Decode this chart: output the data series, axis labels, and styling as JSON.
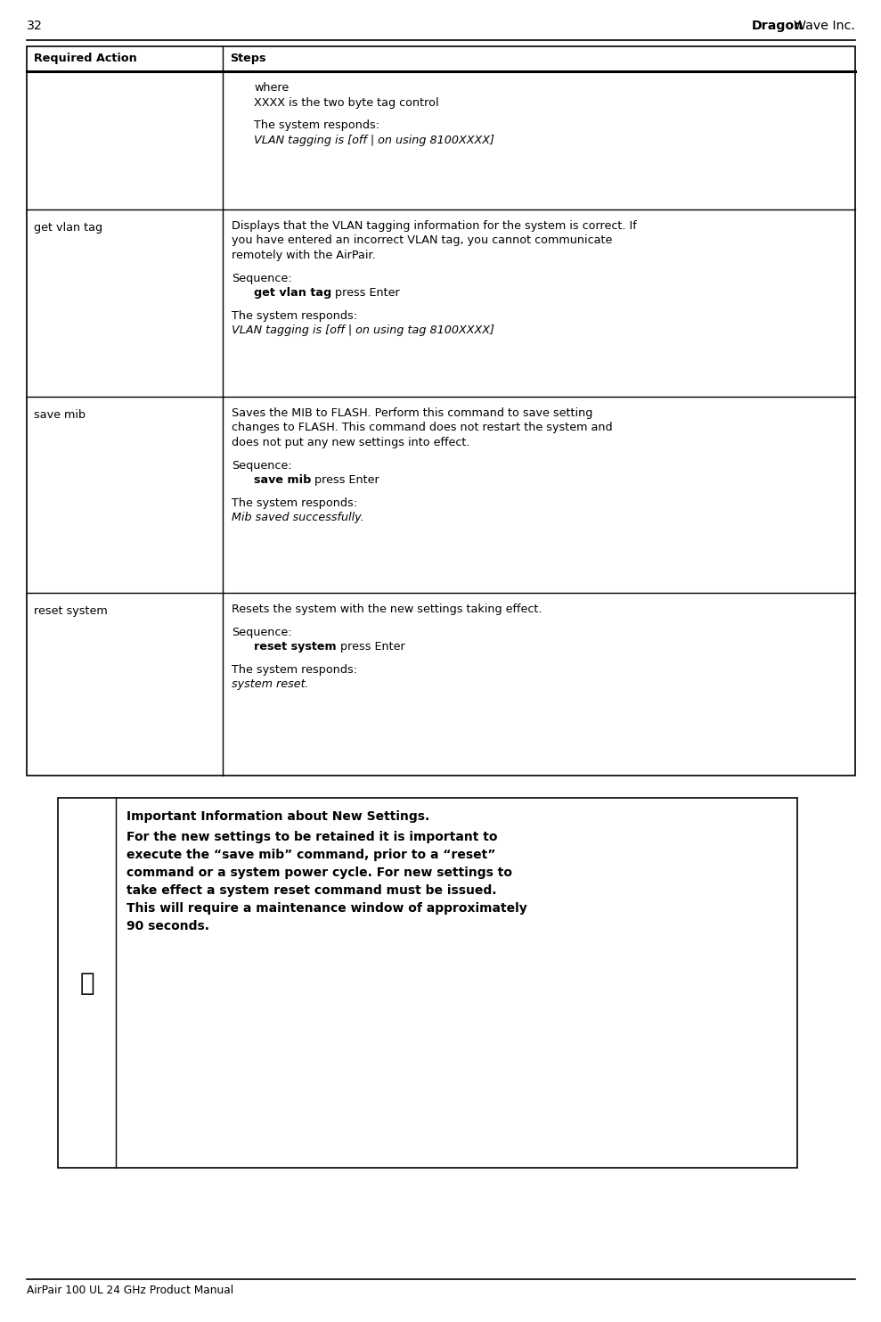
{
  "page_number": "32",
  "company_bold": "Dragon",
  "company_normal": "Wave Inc.",
  "footer_text": "AirPair 100 UL 24 GHz Product Manual",
  "header_col1": "Required Action",
  "header_col2": "Steps",
  "table_rows": [
    {
      "action": "",
      "steps_lines": [
        {
          "text": "where",
          "style": "normal",
          "indent": 1
        },
        {
          "text": "XXXX is the two byte tag control",
          "style": "normal",
          "indent": 1
        },
        {
          "text": "",
          "style": "blank"
        },
        {
          "text": "The system responds:",
          "style": "normal",
          "indent": 1
        },
        {
          "text": "VLAN tagging is [off | on using 8100XXXX]",
          "style": "italic",
          "indent": 1
        }
      ]
    },
    {
      "action": "get vlan tag",
      "steps_lines": [
        {
          "text": "Displays that the VLAN tagging information for the system is correct. If",
          "style": "normal",
          "indent": 0
        },
        {
          "text": "you have entered an incorrect VLAN tag, you cannot communicate",
          "style": "normal",
          "indent": 0
        },
        {
          "text": "remotely with the AirPair.",
          "style": "normal",
          "indent": 0
        },
        {
          "text": "",
          "style": "blank"
        },
        {
          "text": "Sequence:",
          "style": "normal",
          "indent": 0
        },
        {
          "text": "get vlan tag",
          "style": "bold_then_normal",
          "suffix": " press Enter",
          "indent": 1
        },
        {
          "text": "",
          "style": "blank"
        },
        {
          "text": "The system responds:",
          "style": "normal",
          "indent": 0
        },
        {
          "text": "VLAN tagging is [off | on using tag 8100XXXX]",
          "style": "italic",
          "indent": 0
        }
      ]
    },
    {
      "action": "save mib",
      "steps_lines": [
        {
          "text": "Saves the MIB to FLASH. Perform this command to save setting",
          "style": "normal",
          "indent": 0
        },
        {
          "text": "changes to FLASH. This command does not restart the system and",
          "style": "normal",
          "indent": 0
        },
        {
          "text": "does not put any new settings into effect.",
          "style": "normal",
          "indent": 0
        },
        {
          "text": "",
          "style": "blank"
        },
        {
          "text": "Sequence:",
          "style": "normal",
          "indent": 0
        },
        {
          "text": "save mib",
          "style": "bold_then_normal",
          "suffix": " press Enter",
          "indent": 1
        },
        {
          "text": "",
          "style": "blank"
        },
        {
          "text": "The system responds:",
          "style": "normal",
          "indent": 0
        },
        {
          "text": "Mib saved successfully.",
          "style": "italic",
          "indent": 0
        }
      ]
    },
    {
      "action": "reset system",
      "steps_lines": [
        {
          "text": "Resets the system with the new settings taking effect.",
          "style": "normal",
          "indent": 0
        },
        {
          "text": "",
          "style": "blank"
        },
        {
          "text": "Sequence:",
          "style": "normal",
          "indent": 0
        },
        {
          "text": "reset system",
          "style": "bold_then_normal",
          "suffix": " press Enter",
          "indent": 1
        },
        {
          "text": "",
          "style": "blank"
        },
        {
          "text": "The system responds:",
          "style": "normal",
          "indent": 0
        },
        {
          "text": "system reset.",
          "style": "italic",
          "indent": 0
        }
      ]
    }
  ],
  "note_icon": "ⓘ",
  "note_title": "Important Information about New Settings.",
  "note_body_lines": [
    "For the new settings to be retained it is important to",
    "execute the “save mib” command, prior to a “reset”",
    "command or a system power cycle. For new settings to",
    "take effect a system reset command must be issued.",
    "This will require a maintenance window of approximately",
    "90 seconds."
  ],
  "bg_color": "#ffffff",
  "text_color": "#000000",
  "font_size": 9.2,
  "note_font_size": 10.0
}
